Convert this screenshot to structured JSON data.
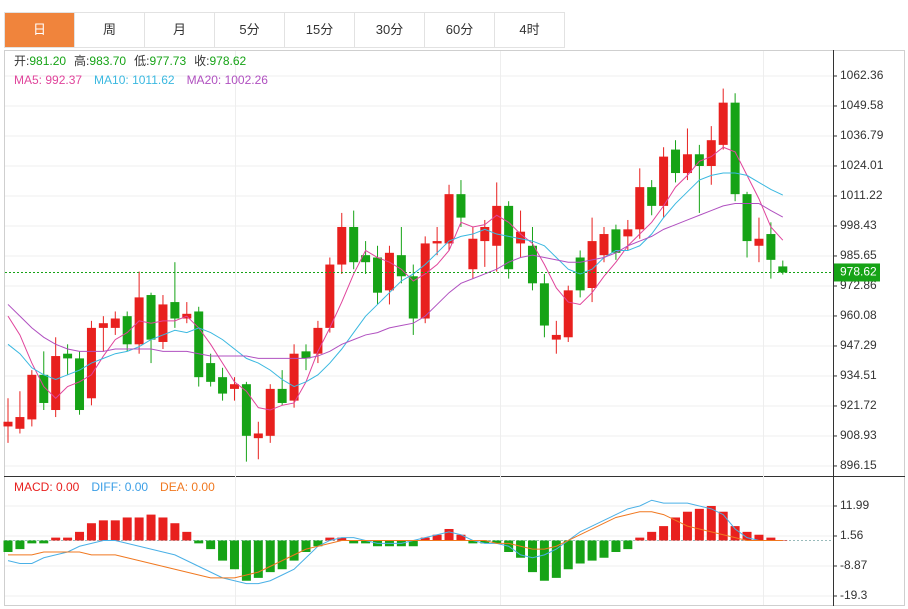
{
  "tabs": [
    "日",
    "周",
    "月",
    "5分",
    "15分",
    "30分",
    "60分",
    "4时"
  ],
  "chart_data": [
    {
      "type": "candlestick",
      "header": [
        {
          "label": "开:",
          "value": "981.20"
        },
        {
          "label": "高:",
          "value": "983.70"
        },
        {
          "label": "低:",
          "value": "977.73"
        },
        {
          "label": "收:",
          "value": "978.62"
        }
      ],
      "legend": [
        {
          "text": "MA5: 992.37",
          "color": "#e0449b"
        },
        {
          "text": "MA10: 1011.62",
          "color": "#3ab8e0"
        },
        {
          "text": "MA20: 1002.26",
          "color": "#b050c0"
        }
      ],
      "up_color": "#e8201e",
      "down_color": "#16a316",
      "open": [
        913,
        912,
        916,
        935,
        920,
        944,
        942,
        925,
        955,
        955,
        960,
        948,
        969,
        949,
        966,
        959,
        962,
        940,
        934,
        929,
        931,
        908,
        909,
        929,
        924,
        945,
        944,
        955,
        982,
        998,
        986,
        985,
        971,
        986,
        977,
        959,
        991,
        991,
        1012,
        980,
        992,
        990,
        1007,
        991,
        990,
        974,
        950,
        951,
        985,
        972,
        986,
        997,
        994,
        997,
        1015,
        1007,
        1031,
        1021,
        1029,
        1024,
        1033,
        1051,
        1012,
        990,
        995,
        981.2
      ],
      "high": [
        925,
        928,
        937,
        945,
        951,
        948,
        945,
        958,
        960,
        962,
        962,
        979,
        970,
        969,
        983,
        966,
        964,
        944,
        938,
        934,
        932,
        915,
        931,
        937,
        948,
        948,
        958,
        985,
        1004,
        1005,
        992,
        990,
        990,
        998,
        982,
        994,
        998,
        1016,
        1018,
        998,
        1001,
        1017,
        1009,
        1005,
        998,
        978,
        958,
        973,
        988,
        1002,
        998,
        999,
        1001,
        1023,
        1018,
        1032,
        1035,
        1040,
        1033,
        1041,
        1057,
        1055,
        1013,
        1002,
        1000,
        983.7
      ],
      "low": [
        906,
        910,
        913,
        920,
        917,
        935,
        918,
        922,
        945,
        952,
        945,
        944,
        940,
        946,
        955,
        957,
        930,
        930,
        924,
        924,
        898,
        899,
        906,
        922,
        921,
        937,
        940,
        953,
        978,
        980,
        978,
        965,
        965,
        974,
        952,
        957,
        986,
        988,
        998,
        976,
        981,
        979,
        976,
        985,
        971,
        951,
        944,
        949,
        968,
        966,
        983,
        984,
        988,
        993,
        1003,
        1002,
        1017,
        1018,
        1004,
        1016,
        1031,
        1009,
        985,
        983,
        976,
        977.73
      ],
      "close": [
        915,
        917,
        935,
        923,
        943,
        942,
        920,
        955,
        957,
        959,
        948,
        968,
        950,
        965,
        959,
        961,
        934,
        932,
        927,
        931,
        909,
        910,
        929,
        923,
        944,
        942,
        955,
        982,
        998,
        983,
        983,
        970,
        987,
        977,
        959,
        991,
        992,
        1012,
        1002,
        993,
        998,
        1007,
        980,
        996,
        974,
        956,
        952,
        971,
        971,
        992,
        995,
        987,
        997,
        1015,
        1007,
        1028,
        1021,
        1029,
        1024,
        1035,
        1051,
        1012,
        992,
        993,
        984,
        978.62
      ],
      "series": [
        {
          "name": "MA5",
          "color": "#e0449b",
          "values": [
            960,
            952,
            940,
            930,
            925,
            930,
            932,
            935,
            943,
            950,
            953,
            958,
            957,
            958,
            958,
            960,
            955,
            948,
            940,
            932,
            928,
            921,
            920,
            922,
            923,
            932,
            945,
            955,
            966,
            978,
            988,
            985,
            983,
            980,
            975,
            978,
            982,
            988,
            1000,
            998,
            999,
            1003,
            1000,
            995,
            991,
            982,
            972,
            966,
            965,
            970,
            977,
            983,
            990,
            995,
            1000,
            1007,
            1015,
            1020,
            1026,
            1028,
            1032,
            1030,
            1020,
            1010,
            998,
            992.37
          ]
        },
        {
          "name": "MA10",
          "color": "#3ab8e0",
          "values": [
            948,
            944,
            938,
            935,
            933,
            935,
            937,
            940,
            942,
            944,
            945,
            947,
            950,
            952,
            954,
            953,
            955,
            953,
            950,
            946,
            942,
            940,
            937,
            933,
            930,
            932,
            935,
            940,
            946,
            953,
            960,
            965,
            970,
            975,
            978,
            982,
            987,
            992,
            994,
            995,
            997,
            995,
            994,
            993,
            992,
            990,
            985,
            980,
            978,
            980,
            985,
            988,
            988,
            990,
            995,
            1002,
            1008,
            1013,
            1018,
            1020,
            1021,
            1021,
            1020,
            1017,
            1014,
            1011.62
          ]
        },
        {
          "name": "MA20",
          "color": "#b050c0",
          "values": [
            965,
            960,
            955,
            951,
            948,
            946,
            945,
            945,
            945,
            946,
            946,
            946,
            946,
            945,
            945,
            945,
            944,
            943,
            943,
            943,
            943,
            942,
            942,
            942,
            942,
            942,
            943,
            945,
            948,
            950,
            952,
            953,
            955,
            956,
            957,
            960,
            965,
            970,
            974,
            976,
            978,
            980,
            983,
            985,
            986,
            985,
            984,
            983,
            983,
            984,
            985,
            987,
            990,
            992,
            994,
            997,
            999,
            1001,
            1003,
            1005,
            1007,
            1008,
            1008,
            1008,
            1005,
            1002.26
          ]
        }
      ],
      "last_price": 978.62,
      "ylim": [
        892.3,
        1067.9
      ],
      "yticks": [
        1062.36,
        1049.58,
        1036.79,
        1024.01,
        1011.22,
        998.43,
        985.65,
        972.86,
        960.08,
        947.29,
        934.51,
        921.72,
        908.93,
        896.15
      ],
      "grid": true
    },
    {
      "type": "macd",
      "legend": [
        {
          "text": "MACD: 0.00",
          "color": "#e8201e"
        },
        {
          "text": "DIFF: 0.00",
          "color": "#3a9ee6"
        },
        {
          "text": "DEA: 0.00",
          "color": "#f07820"
        }
      ],
      "up_color": "#e8201e",
      "down_color": "#16a316",
      "values": [
        -4,
        -3,
        -1,
        -1,
        1,
        1,
        3,
        6,
        7,
        7,
        8,
        8,
        9,
        8,
        6,
        3,
        -1,
        -3,
        -7,
        -10,
        -14,
        -13,
        -11,
        -10,
        -7,
        -4,
        -2,
        1,
        1,
        -1,
        -1,
        -2,
        -2,
        -2,
        -2,
        1,
        2,
        4,
        2,
        -1,
        -1,
        -1,
        -4,
        -6,
        -11,
        -14,
        -13,
        -10,
        -8,
        -7,
        -6,
        -4,
        -3,
        1,
        3,
        5,
        8,
        10,
        11,
        12,
        10,
        5,
        3,
        2,
        1,
        0
      ],
      "series": [
        {
          "name": "DIFF",
          "color": "#4ab0e6",
          "values": [
            -7,
            -8,
            -8,
            -6,
            -5,
            -4,
            -2,
            -1,
            0,
            0,
            -1,
            -2,
            -3,
            -4,
            -5,
            -7,
            -9,
            -11,
            -13,
            -14,
            -15,
            -15,
            -14,
            -12,
            -10,
            -6,
            -2,
            0,
            1,
            1,
            0,
            -1,
            -1,
            -1,
            0,
            1,
            2,
            3,
            2,
            0,
            -1,
            -1,
            -2,
            -5,
            -6,
            -5,
            -3,
            0,
            3,
            5,
            7,
            9,
            11,
            12,
            14,
            13,
            13,
            13,
            12,
            11,
            9,
            4,
            1,
            0,
            0,
            0
          ]
        },
        {
          "name": "DEA",
          "color": "#f07820",
          "values": [
            -5,
            -5,
            -5,
            -4,
            -4,
            -4,
            -4,
            -5,
            -5,
            -5,
            -6,
            -7,
            -8,
            -9,
            -10,
            -11,
            -12,
            -13,
            -13,
            -13,
            -12,
            -11,
            -9,
            -7,
            -5,
            -3,
            -2,
            -1,
            0,
            0,
            0,
            0,
            0,
            0,
            0,
            0,
            0,
            0,
            0,
            0,
            0,
            -1,
            -1,
            -2,
            -3,
            -3,
            -2,
            0,
            2,
            4,
            6,
            8,
            9,
            10,
            10,
            9,
            7,
            5,
            4,
            3,
            2,
            1,
            0,
            0,
            0,
            0
          ]
        }
      ],
      "ylim": [
        -22.43,
        21.03
      ],
      "yticks": [
        11.99,
        1.56,
        -8.87,
        -19.3
      ],
      "grid": true
    }
  ]
}
